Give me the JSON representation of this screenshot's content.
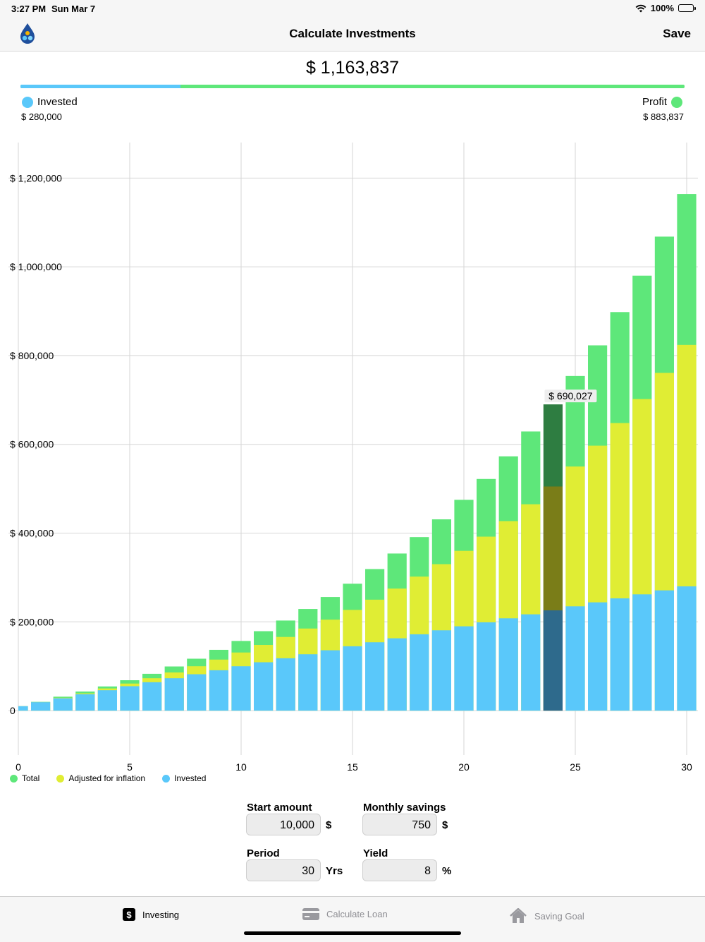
{
  "status_bar": {
    "time": "3:27 PM",
    "date": "Sun Mar 7",
    "battery": "100%"
  },
  "nav": {
    "title": "Calculate Investments",
    "save_label": "Save",
    "logo_icon": "water-drop-icon"
  },
  "summary": {
    "total": "$ 1,163,837",
    "invested_label": "Invested",
    "invested_value": "$ 280,000",
    "profit_label": "Profit",
    "profit_value": "$ 883,837",
    "invested_fraction": 0.2406
  },
  "colors": {
    "invested": "#5ac8fa",
    "inflation": "#e0ed34",
    "total": "#5ee77a",
    "highlight_total": "#2e7d41",
    "highlight_inflation": "#7a7d18",
    "highlight_invested": "#2e6a8c"
  },
  "chart_data": {
    "type": "bar",
    "stacked": "overlay",
    "x": [
      0,
      1,
      2,
      3,
      4,
      5,
      6,
      7,
      8,
      9,
      10,
      11,
      12,
      13,
      14,
      15,
      16,
      17,
      18,
      19,
      20,
      21,
      22,
      23,
      24,
      25,
      26,
      27,
      28,
      29,
      30
    ],
    "series": [
      {
        "name": "Total",
        "values": [
          10000,
          19800,
          31400,
          43000,
          54500,
          68500,
          83000,
          99500,
          117000,
          137000,
          157000,
          179000,
          203000,
          229000,
          256000,
          286000,
          319000,
          354000,
          391000,
          431000,
          475000,
          522000,
          573000,
          629000,
          690027,
          754000,
          823000,
          898000,
          980000,
          1068000,
          1163837
        ]
      },
      {
        "name": "Adjusted for inflation",
        "values": [
          10000,
          19000,
          29000,
          39000,
          50000,
          61000,
          73000,
          86000,
          100000,
          115000,
          131000,
          148000,
          166000,
          185000,
          205000,
          227000,
          250000,
          275000,
          302000,
          330000,
          360000,
          392000,
          427000,
          465000,
          505000,
          550000,
          597000,
          648000,
          702000,
          761000,
          824000
        ]
      },
      {
        "name": "Invested",
        "values": [
          10000,
          19000,
          28000,
          37000,
          46000,
          55000,
          64000,
          73000,
          82000,
          91000,
          100000,
          109000,
          118000,
          127000,
          136000,
          145000,
          154000,
          163000,
          172000,
          181000,
          190000,
          199000,
          208000,
          217000,
          226000,
          235000,
          244000,
          253000,
          262000,
          271000,
          280000
        ]
      }
    ],
    "x_ticks": [
      "0",
      "5",
      "10",
      "15",
      "20",
      "25",
      "30"
    ],
    "y_ticks": [
      "0",
      "$ 200,000",
      "$ 400,000",
      "$ 600,000",
      "$ 800,000",
      "$ 1,000,000",
      "$ 1,200,000"
    ],
    "ylim": [
      -100000,
      1280000
    ],
    "xlim": [
      0,
      30
    ],
    "grid": true,
    "legend_position": "bottom-left",
    "highlighted_index": 24,
    "highlight_label": "$ 690,027"
  },
  "inputs": {
    "start_amount": {
      "label": "Start amount",
      "value": "10,000",
      "unit": "$"
    },
    "monthly_savings": {
      "label": "Monthly savings",
      "value": "750",
      "unit": "$"
    },
    "period": {
      "label": "Period",
      "value": "30",
      "unit": "Yrs"
    },
    "yield": {
      "label": "Yield",
      "value": "8",
      "unit": "%"
    }
  },
  "tabs": [
    {
      "label": "Investing",
      "icon": "dollar-icon",
      "active": true
    },
    {
      "label": "Calculate Loan",
      "icon": "credit-card-icon",
      "active": false
    },
    {
      "label": "Saving Goal",
      "icon": "house-icon",
      "active": false
    }
  ]
}
